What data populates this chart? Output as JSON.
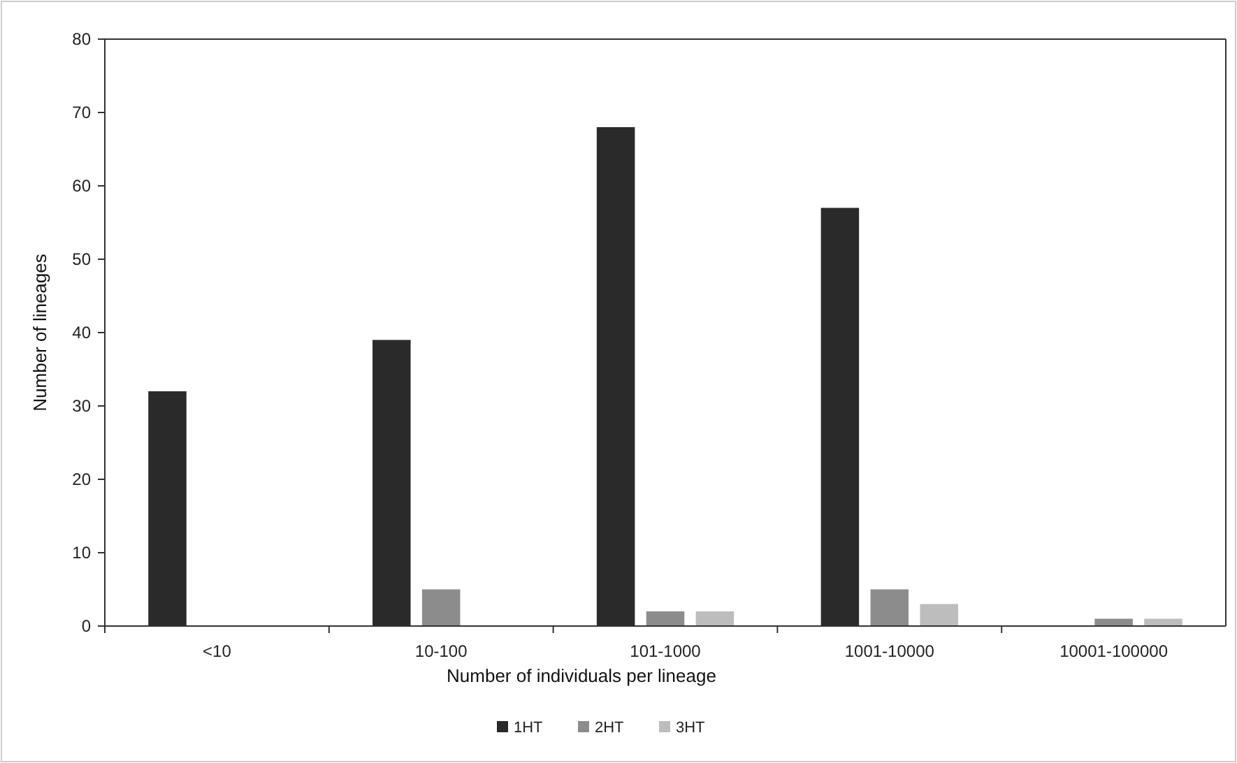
{
  "chart_data": {
    "type": "bar",
    "xlabel": "Number of individuals per lineage",
    "ylabel": "Number of lineages",
    "categories": [
      "<10",
      "10-100",
      "101-1000",
      "1001-10000",
      "10001-100000"
    ],
    "series": [
      {
        "name": "1HT",
        "color": "#2a2a2a",
        "values": [
          32,
          39,
          68,
          57,
          0
        ]
      },
      {
        "name": "2HT",
        "color": "#8c8c8c",
        "values": [
          0,
          5,
          2,
          5,
          1
        ]
      },
      {
        "name": "3HT",
        "color": "#bdbdbd",
        "values": [
          0,
          0,
          2,
          3,
          1
        ]
      }
    ],
    "ylim": [
      0,
      80
    ],
    "yticks": [
      0,
      10,
      20,
      30,
      40,
      50,
      60,
      70,
      80
    ],
    "grid": false,
    "legend": "bottom"
  }
}
